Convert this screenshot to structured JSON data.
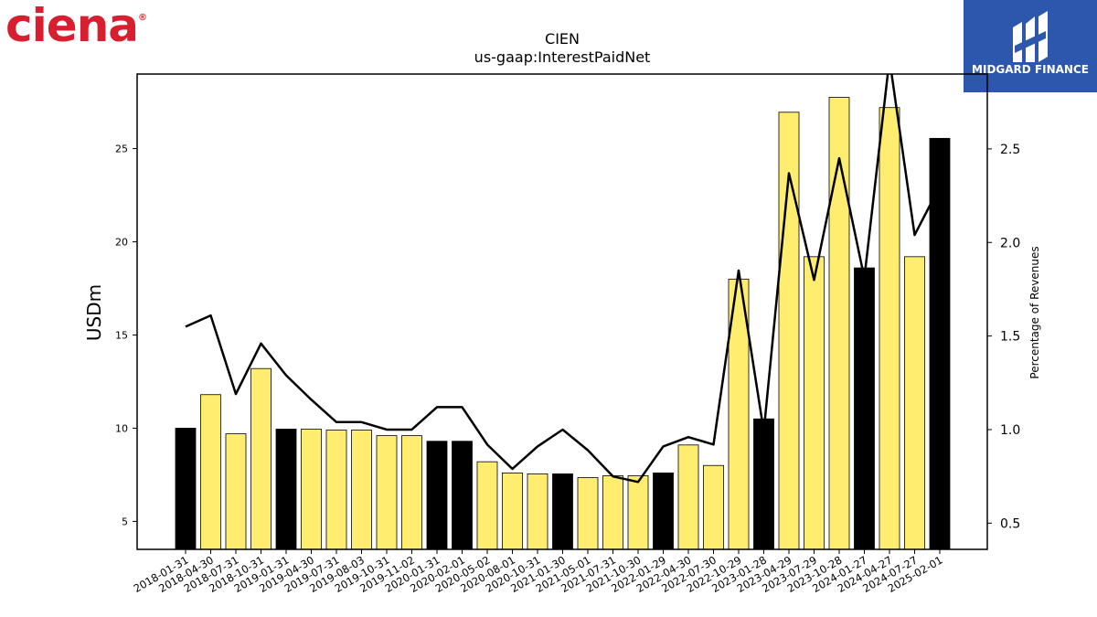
{
  "logos": {
    "left_text": "ciena",
    "right_text": "MIDGARD FINANCE"
  },
  "chart_data": {
    "type": "bar",
    "title": "CIEN",
    "subtitle": "us-gaap:InterestPaidNet",
    "ylabel": "USDm",
    "y2label": "Percentage of Revenues",
    "ylim": [
      3.5,
      29
    ],
    "y2lim": [
      0.36,
      2.9
    ],
    "yticks": [
      5,
      10,
      15,
      20,
      25
    ],
    "y2ticks": [
      0.5,
      1.0,
      1.5,
      2.0,
      2.5
    ],
    "categories": [
      "2018-01-31",
      "2018-04-30",
      "2018-07-31",
      "2018-10-31",
      "2019-01-31",
      "2019-04-30",
      "2019-07-31",
      "2019-08-03",
      "2019-10-31",
      "2019-11-02",
      "2020-01-31",
      "2020-02-01",
      "2020-05-02",
      "2020-08-01",
      "2020-10-31",
      "2021-01-30",
      "2021-05-01",
      "2021-07-31",
      "2021-10-30",
      "2022-01-29",
      "2022-04-30",
      "2022-07-30",
      "2022-10-29",
      "2023-01-28",
      "2023-04-29",
      "2023-07-29",
      "2023-10-28",
      "2024-01-27",
      "2024-04-27",
      "2024-07-27",
      "2025-02-01"
    ],
    "series": [
      {
        "kind": "bar",
        "values": [
          10.0,
          11.8,
          9.7,
          13.2,
          9.95,
          9.95,
          9.9,
          9.9,
          9.6,
          9.6,
          9.3,
          9.3,
          8.2,
          7.6,
          7.55,
          7.55,
          7.35,
          7.45,
          7.45,
          7.6,
          9.1,
          8.0,
          18.0,
          10.5,
          26.95,
          19.2,
          27.75,
          18.6,
          27.2,
          19.2,
          25.55
        ],
        "highlight": [
          true,
          false,
          false,
          false,
          true,
          false,
          false,
          false,
          false,
          false,
          true,
          true,
          false,
          false,
          false,
          true,
          false,
          false,
          false,
          true,
          false,
          false,
          false,
          true,
          false,
          false,
          false,
          true,
          false,
          false,
          true
        ]
      },
      {
        "kind": "line",
        "axis": "right",
        "values": [
          1.55,
          1.61,
          1.19,
          1.46,
          1.29,
          1.16,
          1.04,
          1.04,
          1.0,
          1.0,
          1.12,
          1.12,
          0.92,
          0.79,
          0.91,
          1.0,
          0.89,
          0.75,
          0.72,
          0.91,
          0.96,
          0.92,
          1.85,
          0.99,
          2.37,
          1.8,
          2.45,
          1.81,
          2.98,
          2.04,
          2.3
        ]
      }
    ],
    "colors": {
      "bar": "#ffed6f",
      "bar_highlight": "#000000",
      "line": "#000000"
    },
    "grid": false,
    "legend": "none"
  }
}
